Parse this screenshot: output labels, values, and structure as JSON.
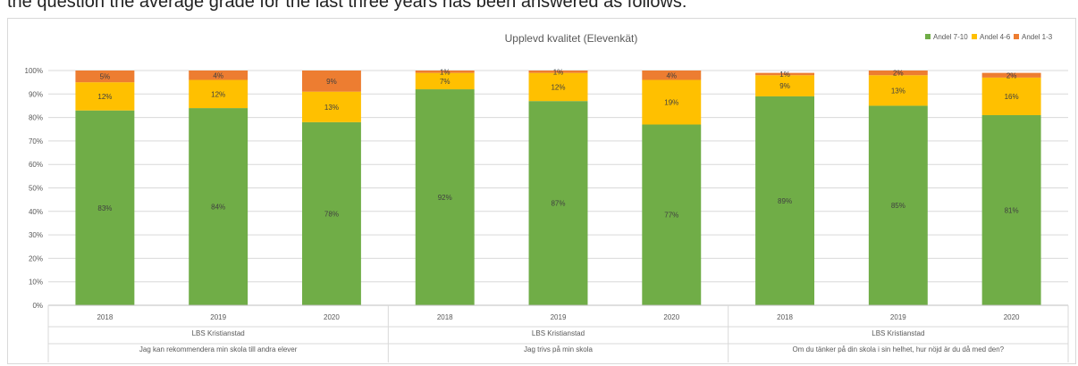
{
  "top_text": "the question the average grade for the last three years has been answered as follows:",
  "chart_data": {
    "type": "bar",
    "stacked": true,
    "title": "Upplevd kvalitet (Elevenkät)",
    "legend_position": "top-right",
    "ylim": [
      0,
      100
    ],
    "y_ticks": [
      "0%",
      "10%",
      "20%",
      "30%",
      "40%",
      "50%",
      "60%",
      "70%",
      "80%",
      "90%",
      "100%"
    ],
    "grid": true,
    "groups": [
      {
        "school": "LBS Kristianstad",
        "question": "Jag kan rekommendera min skola till andra elever",
        "years": [
          "2018",
          "2019",
          "2020"
        ]
      },
      {
        "school": "LBS Kristianstad",
        "question": "Jag trivs på min skola",
        "years": [
          "2018",
          "2019",
          "2020"
        ]
      },
      {
        "school": "LBS Kristianstad",
        "question": "Om du tänker på din skola i sin helhet, hur nöjd är du då med den?",
        "years": [
          "2018",
          "2019",
          "2020"
        ]
      }
    ],
    "categories": [
      "2018",
      "2019",
      "2020",
      "2018",
      "2019",
      "2020",
      "2018",
      "2019",
      "2020"
    ],
    "series": [
      {
        "name": "Andel 7-10",
        "color": "#70ad47",
        "values": [
          83,
          84,
          78,
          92,
          87,
          77,
          89,
          85,
          81
        ],
        "labels": [
          "83%",
          "84%",
          "78%",
          "92%",
          "87%",
          "77%",
          "89%",
          "85%",
          "81%"
        ]
      },
      {
        "name": "Andel 4-6",
        "color": "#ffc000",
        "values": [
          12,
          12,
          13,
          7,
          12,
          19,
          9,
          13,
          16
        ],
        "labels": [
          "12%",
          "12%",
          "13%",
          "7%",
          "12%",
          "19%",
          "9%",
          "13%",
          "16%"
        ]
      },
      {
        "name": "Andel 1-3",
        "color": "#ed7d31",
        "values": [
          5,
          4,
          9,
          1,
          1,
          4,
          1,
          2,
          2
        ],
        "labels": [
          "5%",
          "4%",
          "9%",
          "1%",
          "1%",
          "4%",
          "1%",
          "2%",
          "2%"
        ]
      }
    ]
  }
}
